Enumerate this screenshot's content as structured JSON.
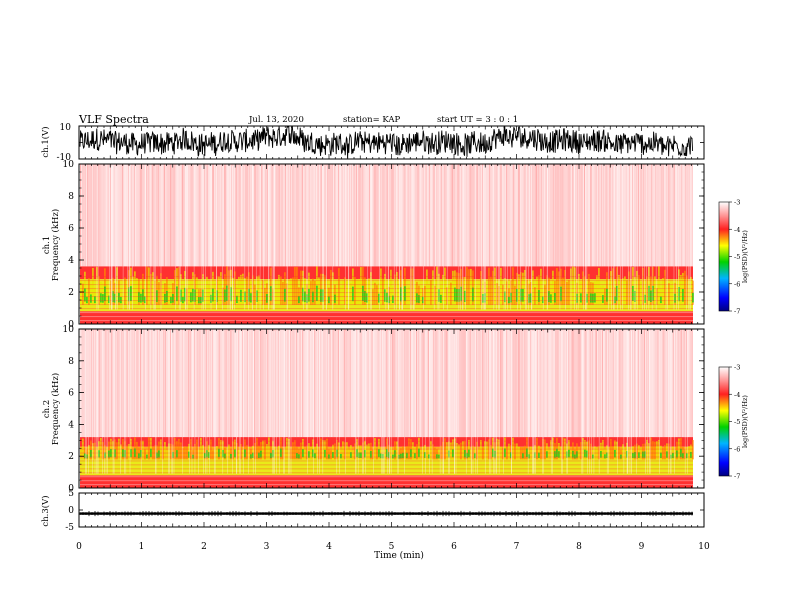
{
  "header": {
    "title": "VLF Spectra",
    "date": "Jul. 13, 2020",
    "station": "station= KAP",
    "start": "start  UT  =   3  : 0   : 1"
  },
  "panels": {
    "ch1_wave": {
      "ylabel": "ch.1(V)",
      "ymax_label": "10",
      "ymin_label": "-10"
    },
    "ch1_spec": {
      "ylabel": "ch.1\nFrequency (kHz)",
      "yticks": [
        "0",
        "2",
        "4",
        "6",
        "8",
        "10"
      ]
    },
    "ch2_spec": {
      "ylabel": "ch.2\nFrequency (kHz)",
      "yticks": [
        "0",
        "2",
        "4",
        "6",
        "8",
        "10"
      ]
    },
    "ch3_wave": {
      "ylabel": "ch.3(V)",
      "yticks": [
        "-5",
        "0",
        "5"
      ]
    }
  },
  "colorbar": {
    "label": "log(PSD)(V²/Hz)",
    "ticks": [
      "-3",
      "-4",
      "-5",
      "-6",
      "-7"
    ]
  },
  "xaxis": {
    "label": "Time (min)",
    "ticks": [
      "0",
      "1",
      "2",
      "3",
      "4",
      "5",
      "6",
      "7",
      "8",
      "9",
      "10"
    ]
  },
  "colors": {
    "frame": "#000000",
    "spec_bg": "#ffffff",
    "red": "#ff1a1a",
    "yellow": "#e8e800",
    "green": "#19d219"
  },
  "chart_data": [
    {
      "type": "line",
      "name": "ch.1(V) waveform",
      "xlabel": "",
      "ylabel": "ch.1(V)",
      "xlim": [
        0,
        10
      ],
      "ylim": [
        -10,
        10
      ],
      "description_values": {
        "typical_range": [
          -9,
          9
        ]
      }
    },
    {
      "type": "heatmap",
      "ylabel": "ch.1 Frequency (kHz)",
      "xlim": [
        0,
        10
      ],
      "ylim": [
        0,
        10
      ],
      "colorbar_range": [
        -7,
        -3
      ],
      "bands": [
        {
          "freq_range": [
            0,
            0.8
          ],
          "level": -3.8
        },
        {
          "freq_range": [
            0.8,
            1.2
          ],
          "level": -5.0
        },
        {
          "freq_range": [
            1.2,
            2.8
          ],
          "level": -4.8
        },
        {
          "freq_range": [
            2.8,
            3.6
          ],
          "level": -4.0
        },
        {
          "freq_range": [
            3.6,
            10
          ],
          "level": -3.4
        }
      ]
    },
    {
      "type": "heatmap",
      "ylabel": "ch.2 Frequency (kHz)",
      "xlim": [
        0,
        10
      ],
      "ylim": [
        0,
        10
      ],
      "colorbar_range": [
        -7,
        -3
      ],
      "bands": [
        {
          "freq_range": [
            0,
            0.8
          ],
          "level": -3.8
        },
        {
          "freq_range": [
            0.8,
            1.8
          ],
          "level": -5.0
        },
        {
          "freq_range": [
            1.8,
            2.6
          ],
          "level": -4.6
        },
        {
          "freq_range": [
            2.6,
            3.2
          ],
          "level": -4.0
        },
        {
          "freq_range": [
            3.2,
            10
          ],
          "level": -3.4
        }
      ]
    },
    {
      "type": "line",
      "name": "ch.3(V) waveform",
      "xlabel": "Time (min)",
      "ylabel": "ch.3(V)",
      "xlim": [
        0,
        10
      ],
      "ylim": [
        -5,
        5
      ],
      "description_values": {
        "mean": -1.0,
        "band": [
          -1.4,
          -0.7
        ]
      }
    }
  ]
}
